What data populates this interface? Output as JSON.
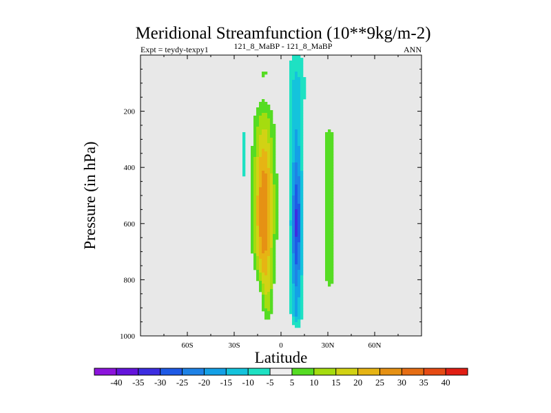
{
  "chart_data": {
    "type": "contour",
    "title": "Meridional Streamfunction (10**9kg/m-2)",
    "subtitle_left": "Expt = teydy-texpy1",
    "subtitle_center": "121_8_MaBP - 121_8_MaBP",
    "subtitle_right": "ANN",
    "xlabel": "Latitude",
    "ylabel": "Pressure (in hPa)",
    "xlim": [
      -90,
      90
    ],
    "ylim": [
      0,
      1000
    ],
    "y_inverted": true,
    "xticks": [
      {
        "value": -60,
        "label": "60S"
      },
      {
        "value": -30,
        "label": "30S"
      },
      {
        "value": 0,
        "label": "0"
      },
      {
        "value": 30,
        "label": "30N"
      },
      {
        "value": 60,
        "label": "60N"
      }
    ],
    "yticks": [
      {
        "value": 200,
        "label": "200"
      },
      {
        "value": 400,
        "label": "400"
      },
      {
        "value": 600,
        "label": "600"
      },
      {
        "value": 800,
        "label": "800"
      },
      {
        "value": 1000,
        "label": "1000"
      }
    ],
    "background_color": "#e8e8e8",
    "colorbar": {
      "boundaries": [
        -40,
        -35,
        -30,
        -25,
        -20,
        -15,
        -10,
        -5,
        5,
        10,
        15,
        20,
        25,
        30,
        35,
        40
      ],
      "labels": [
        "-40",
        "-35",
        "-30",
        "-25",
        "-20",
        "-15",
        "-10",
        "-5",
        "5",
        "10",
        "15",
        "20",
        "25",
        "30",
        "35",
        "40"
      ],
      "colors": [
        "#8c14dc",
        "#6414dc",
        "#3c2de1",
        "#1e5ae6",
        "#1e82e6",
        "#14a0e6",
        "#14c3dc",
        "#1ee1c3",
        "#eeeeee",
        "#55dc23",
        "#a5dc0f",
        "#d2d214",
        "#e6b414",
        "#e69114",
        "#e66e14",
        "#e64b14",
        "#e11e14"
      ]
    },
    "contour_features": [
      {
        "name": "southern-positive-cell",
        "sign": "positive",
        "center_lat": -11,
        "center_pressure": 580,
        "peak_value": 30,
        "lat_extent": [
          -24,
          2
        ],
        "pressure_extent": [
          80,
          980
        ]
      },
      {
        "name": "northern-negative-cell",
        "sign": "negative",
        "center_lat": 10,
        "center_pressure": 600,
        "peak_value": -30,
        "lat_extent": [
          3,
          16
        ],
        "pressure_extent": [
          0,
          985
        ]
      },
      {
        "name": "northern-positive-band",
        "sign": "positive",
        "center_lat": 31,
        "center_pressure": 550,
        "peak_value": 7,
        "lat_extent": [
          26,
          36
        ],
        "pressure_extent": [
          225,
          880
        ]
      },
      {
        "name": "southern-negative-band",
        "sign": "negative",
        "center_lat": -24,
        "center_pressure": 340,
        "peak_value": -7,
        "lat_extent": [
          -27,
          -21
        ],
        "pressure_extent": [
          250,
          460
        ]
      }
    ]
  }
}
